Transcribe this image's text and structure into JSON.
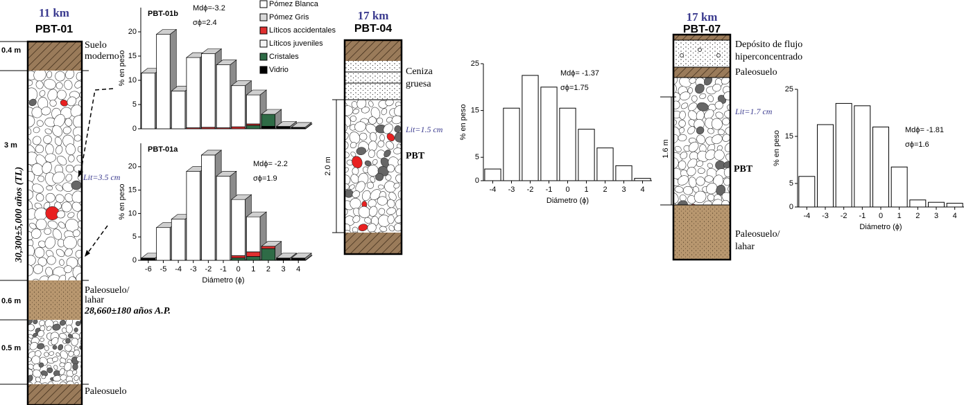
{
  "columns": [
    {
      "distance": "11 km",
      "name": "PBT-01",
      "thickness": [
        "0.4 m",
        "3 m",
        "0.6 m",
        "0.5 m"
      ],
      "top_soil": [
        "Suelo",
        "moderno"
      ],
      "paleosoil_lahar": [
        "Paleosuelo/",
        "lahar"
      ],
      "date_ap": "28,660±180 años A.P.",
      "paleosoil": "Paleosuelo",
      "date_tl": "30,300±5,000 años (TL)",
      "lithic": "Lit=3.5 cm"
    },
    {
      "distance": "17 km",
      "name": "PBT-04",
      "ash": [
        "Ceniza",
        "gruesa"
      ],
      "lithic": "Lit=1.5 cm",
      "unit": "PBT",
      "thickness": "2.0 m"
    },
    {
      "distance": "17 km",
      "name": "PBT-07",
      "flow": [
        "Depósito de flujo",
        "hiperconcentrado"
      ],
      "paleosoil": "Paleosuelo",
      "lithic": "Lit=1.7 cm",
      "unit": "PBT",
      "thickness": "1.6 m",
      "paleosoil_lahar": [
        "Paleosuelo/",
        "lahar"
      ]
    }
  ],
  "chart_data": [
    {
      "type": "stacked-bar-3d",
      "title": "PBT-01b",
      "ylabel": "% en peso",
      "annotations": [
        "Mdϕ=-3.2",
        "σϕ=2.4"
      ],
      "ylim": [
        0,
        25
      ],
      "yticks": [
        0,
        5,
        10,
        15,
        20
      ],
      "legend": true,
      "series": [
        {
          "name": "Pómez Blanca",
          "color": "#ffffff",
          "values": [
            11.5,
            19.5,
            7.8,
            14.5,
            15.2,
            13,
            8.5,
            6,
            0,
            0,
            0
          ]
        },
        {
          "name": "Pómez Gris",
          "color": "#d9d9d9",
          "values": [
            0,
            0,
            0,
            0,
            0,
            0,
            0,
            0,
            0,
            0,
            0
          ]
        },
        {
          "name": "Líticos  accidentales",
          "color": "#e03030",
          "values": [
            0,
            0,
            0,
            0.2,
            0.3,
            0.2,
            0.4,
            0.3,
            0,
            0,
            0
          ]
        },
        {
          "name": "Líticos juveniles",
          "color": "#f4f4f4",
          "values": [
            0,
            0,
            0,
            0,
            0,
            0,
            0,
            0,
            0,
            0,
            0
          ]
        },
        {
          "name": "Cristales",
          "color": "#2e6b46",
          "values": [
            0,
            0,
            0,
            0,
            0,
            0,
            0,
            0.7,
            2.5,
            0,
            0
          ]
        },
        {
          "name": "Vidrio",
          "color": "#000000",
          "values": [
            0,
            0,
            0,
            0,
            0,
            0,
            0,
            0,
            0.5,
            0.5,
            0.3
          ]
        }
      ]
    },
    {
      "type": "stacked-bar-3d",
      "title": "PBT-01a",
      "ylabel": "% en peso",
      "xlabel": "Diámetro (ϕ)",
      "annotations": [
        "Mdϕ= -2.2",
        "σϕ=1.9"
      ],
      "categories": [
        "-6",
        "-5",
        "-4",
        "-3",
        "-2",
        "-1",
        "0",
        "1",
        "2",
        "3",
        "4"
      ],
      "ylim": [
        0,
        25
      ],
      "yticks": [
        0,
        5,
        10,
        15,
        20
      ],
      "series": [
        {
          "name": "Pómez Blanca",
          "color": "#ffffff",
          "values": [
            0,
            7,
            8.8,
            19,
            22.5,
            18,
            12,
            7.5,
            0,
            0,
            0
          ]
        },
        {
          "name": "Pómez Gris",
          "color": "#d9d9d9",
          "values": [
            0,
            0,
            0,
            0,
            0,
            0,
            0,
            0,
            0,
            0,
            0
          ]
        },
        {
          "name": "Líticos  accidentales",
          "color": "#e03030",
          "values": [
            0,
            0,
            0,
            0,
            0,
            0,
            0.5,
            1,
            0.5,
            0,
            0
          ]
        },
        {
          "name": "Líticos juveniles",
          "color": "#f4f4f4",
          "values": [
            0,
            0,
            0,
            0,
            0,
            0,
            0,
            0,
            0,
            0,
            0
          ]
        },
        {
          "name": "Cristales",
          "color": "#2e6b46",
          "values": [
            0,
            0,
            0,
            0,
            0,
            0,
            0.5,
            0.8,
            2.5,
            0,
            0
          ]
        },
        {
          "name": "Vidrio",
          "color": "#000000",
          "values": [
            0.5,
            0,
            0,
            0,
            0,
            0,
            0,
            0,
            0,
            0.5,
            0.5
          ]
        }
      ]
    },
    {
      "type": "bar",
      "ylabel": "% en peso",
      "xlabel": "Diámetro (ϕ)",
      "annotations": [
        "Mdϕ= -1.37",
        "σϕ=1.75"
      ],
      "categories": [
        "-4",
        "-3",
        "-2",
        "-1",
        "0",
        "1",
        "2",
        "3",
        "4"
      ],
      "values": [
        2.5,
        15.5,
        22.5,
        20,
        15.5,
        11,
        7,
        3.2,
        0.5
      ],
      "color": "#ffffff",
      "ylim": [
        0,
        25
      ],
      "yticks": [
        0,
        5,
        15,
        25
      ]
    },
    {
      "type": "bar",
      "ylabel": "% en peso",
      "xlabel": "Diámetro (ϕ)",
      "annotations": [
        "Mdϕ= -1.81",
        "σϕ=1.6"
      ],
      "categories": [
        "-4",
        "-3",
        "-2",
        "-1",
        "0",
        "1",
        "2",
        "3",
        "4"
      ],
      "values": [
        6.5,
        17.5,
        22,
        21.5,
        17,
        8.5,
        1.5,
        1,
        0.8
      ],
      "color": "#ffffff",
      "ylim": [
        0,
        25
      ],
      "yticks": [
        0,
        5,
        15,
        25
      ]
    }
  ]
}
